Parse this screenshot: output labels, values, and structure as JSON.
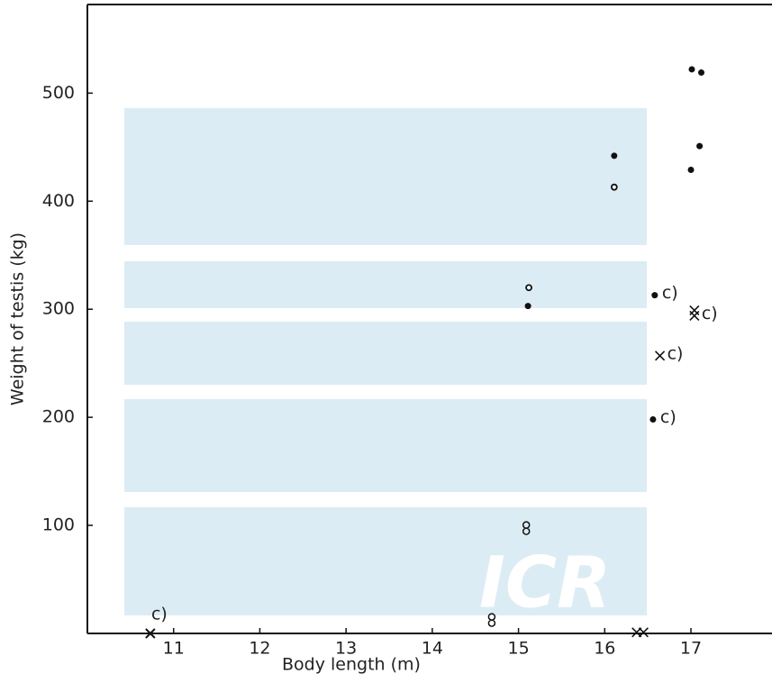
{
  "chart_data": {
    "type": "scatter",
    "xlabel": "Body length (m)",
    "ylabel": "Weight of testis (kg)",
    "xlim": [
      10,
      17.94
    ],
    "ylim": [
      0,
      582
    ],
    "xticks": [
      11,
      12,
      13,
      14,
      15,
      16,
      17
    ],
    "yticks": [
      100,
      200,
      300,
      400,
      500
    ],
    "color": "#111111",
    "watermark": "ICR",
    "watermark_color": "#dcecf4",
    "points": [
      {
        "x": 17.01,
        "y": 522,
        "marker": "dot"
      },
      {
        "x": 17.12,
        "y": 519,
        "marker": "dot"
      },
      {
        "x": 17.1,
        "y": 451,
        "marker": "dot"
      },
      {
        "x": 16.11,
        "y": 442,
        "marker": "dot"
      },
      {
        "x": 17.0,
        "y": 429,
        "marker": "dot"
      },
      {
        "x": 16.11,
        "y": 413,
        "marker": "circle"
      },
      {
        "x": 15.12,
        "y": 320,
        "marker": "circle"
      },
      {
        "x": 15.11,
        "y": 303,
        "marker": "dot"
      },
      {
        "x": 16.58,
        "y": 313,
        "marker": "dot",
        "label": "c)"
      },
      {
        "x": 17.04,
        "y": 299,
        "marker": "cross"
      },
      {
        "x": 17.04,
        "y": 294,
        "marker": "cross",
        "label": "c)"
      },
      {
        "x": 16.64,
        "y": 257,
        "marker": "cross",
        "label": "c)"
      },
      {
        "x": 16.56,
        "y": 198,
        "marker": "dot",
        "label": "c)"
      },
      {
        "x": 15.09,
        "y": 97,
        "marker": "double"
      },
      {
        "x": 14.69,
        "y": 12,
        "marker": "double"
      },
      {
        "x": 16.37,
        "y": 1,
        "marker": "cross"
      },
      {
        "x": 16.45,
        "y": 1,
        "marker": "cross"
      },
      {
        "x": 10.73,
        "y": 0,
        "marker": "star",
        "label": "c)"
      }
    ]
  }
}
